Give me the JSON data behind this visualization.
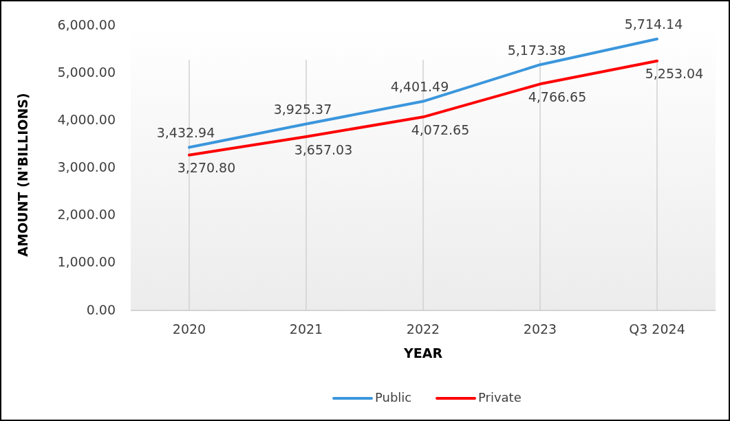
{
  "chart_data": {
    "type": "line",
    "xlabel": "YEAR",
    "ylabel": "AMOUNT (N'BILLIONS)",
    "categories": [
      "2020",
      "2021",
      "2022",
      "2023",
      "Q3 2024"
    ],
    "series": [
      {
        "name": "Public",
        "color": "#3b96dc",
        "values": [
          3432.94,
          3925.37,
          4401.49,
          5173.38,
          5714.14
        ],
        "value_labels": [
          "3,432.94",
          "3,925.37",
          "4,401.49",
          "5,173.38",
          "5,714.14"
        ]
      },
      {
        "name": "Private",
        "color": "#fe0000",
        "values": [
          3270.8,
          3657.03,
          4072.65,
          4766.65,
          5253.04
        ],
        "value_labels": [
          "3,270.80",
          "3,657.03",
          "4,072.65",
          "4,766.65",
          "5,253.04"
        ]
      }
    ],
    "ylim": [
      0,
      6000
    ],
    "yticks": [
      {
        "value": 0,
        "label": "0.00"
      },
      {
        "value": 1000,
        "label": "1,000.00"
      },
      {
        "value": 2000,
        "label": "2,000.00"
      },
      {
        "value": 3000,
        "label": "3,000.00"
      },
      {
        "value": 4000,
        "label": "4,000.00"
      },
      {
        "value": 5000,
        "label": "5,000.00"
      },
      {
        "value": 6000,
        "label": "6,000.00"
      }
    ],
    "grid": "x",
    "legend": "bottom",
    "marker": "none",
    "line_style": "solid"
  }
}
